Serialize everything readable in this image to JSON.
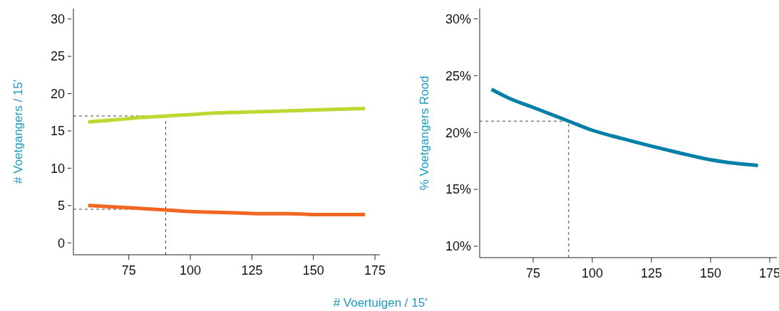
{
  "chart_data": [
    {
      "type": "line",
      "xlabel": "# Voertuigen / 15′",
      "ylabel": "# Voetgangers / 15′",
      "xlim": [
        52.5,
        177
      ],
      "xticks": [
        75,
        100,
        125,
        150,
        175
      ],
      "ylim": [
        -1.6,
        31.4
      ],
      "yticks": [
        0,
        5,
        10,
        15,
        20,
        25,
        30
      ],
      "series": [
        {
          "color": "#bfd730",
          "x": [
            58.5,
            70,
            80,
            90,
            100,
            110,
            120,
            130,
            140,
            150,
            160,
            171
          ],
          "values": [
            16.2,
            16.5,
            16.8,
            17.0,
            17.2,
            17.4,
            17.5,
            17.6,
            17.7,
            17.8,
            17.9,
            18.0
          ]
        },
        {
          "color": "#f26522",
          "x": [
            58.5,
            70,
            80,
            90,
            100,
            110,
            120,
            130,
            140,
            150,
            160,
            171
          ],
          "values": [
            5.0,
            4.8,
            4.6,
            4.4,
            4.2,
            4.1,
            4.0,
            3.9,
            3.9,
            3.8,
            3.8,
            3.8
          ]
        }
      ],
      "ref_lines": [
        {
          "axis": "x",
          "value": 90
        },
        {
          "axis": "y",
          "value": 17
        },
        {
          "axis": "y",
          "value": 4.5
        }
      ],
      "line_style": "solid",
      "marker": "none"
    },
    {
      "type": "line",
      "ylabel": "% Voetgangers Rood",
      "xlim": [
        52.4,
        178
      ],
      "xticks": [
        75,
        100,
        125,
        150,
        175
      ],
      "ylim": [
        9,
        30.9
      ],
      "yticks": [
        {
          "value": 10,
          "label": "10%"
        },
        {
          "value": 15,
          "label": "15%"
        },
        {
          "value": 20,
          "label": "20%"
        },
        {
          "value": 25,
          "label": "25%"
        },
        {
          "value": 30,
          "label": "30%"
        }
      ],
      "series": [
        {
          "color": "#0080a8",
          "x": [
            57.4,
            65,
            75,
            90,
            100,
            112,
            125,
            137,
            150,
            160,
            170
          ],
          "values": [
            23.8,
            23.0,
            22.2,
            21.0,
            20.2,
            19.5,
            18.8,
            18.2,
            17.6,
            17.3,
            17.1
          ]
        }
      ],
      "ref_lines": [
        {
          "axis": "x",
          "value": 90
        },
        {
          "axis": "y",
          "value": 21
        }
      ],
      "line_style": "solid",
      "marker": "none"
    }
  ]
}
